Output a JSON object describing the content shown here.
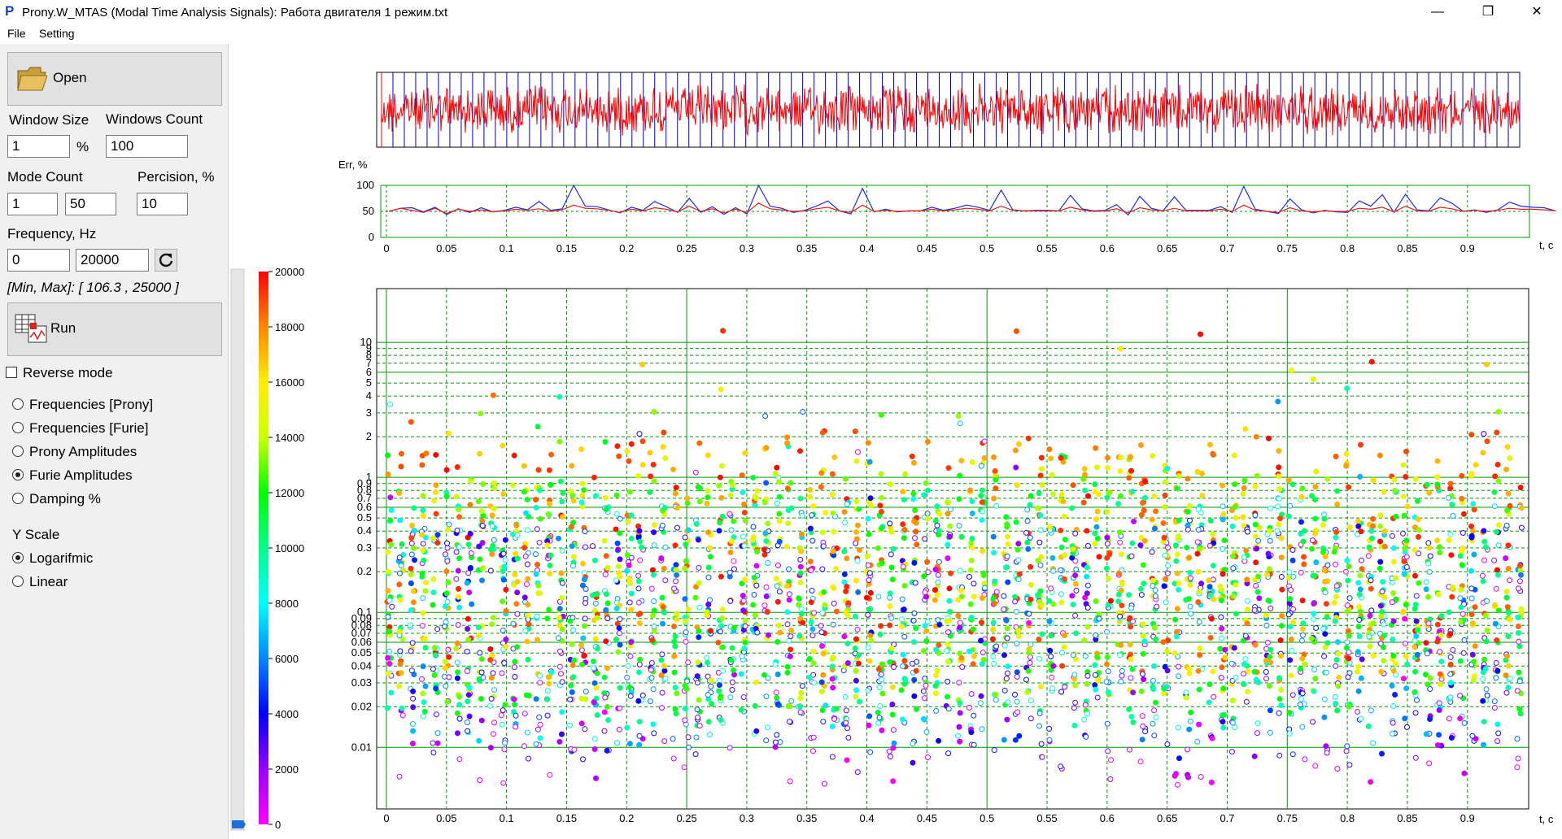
{
  "window": {
    "title": "Prony.W_MTAS (Modal Time Analysis Signals): Работа двигателя 1 режим.txt",
    "app_icon": "P",
    "minimize_glyph": "—",
    "maximize_glyph": "❐",
    "close_glyph": "✕"
  },
  "menu": [
    {
      "label": "File"
    },
    {
      "label": "Setting"
    }
  ],
  "panel": {
    "open_label": "Open",
    "window_size_label": "Window Size",
    "window_size_value": "1",
    "window_size_unit": "%",
    "windows_count_label": "Windows Count",
    "windows_count_value": "100",
    "mode_count_label": "Mode Count",
    "mode_count_min": "1",
    "mode_count_max": "50",
    "percision_label": "Percision, %",
    "percision_value": "10",
    "frequency_label": "Frequency, Hz",
    "frequency_min": "0",
    "frequency_max": "20000",
    "minmax_text": "[Min, Max]: [ 106.3 , 25000 ]",
    "run_label": "Run",
    "reverse_label": "Reverse mode",
    "reverse_checked": false,
    "display_options": [
      {
        "label": "Frequencies [Prony]",
        "selected": false
      },
      {
        "label": "Frequencies [Furie]",
        "selected": false
      },
      {
        "label": "Prony Amplitudes",
        "selected": false
      },
      {
        "label": "Furie Amplitudes",
        "selected": true
      },
      {
        "label": "Damping %",
        "selected": false
      }
    ],
    "yscale_label": "Y Scale",
    "yscale_options": [
      {
        "label": "Logarifmic",
        "selected": true
      },
      {
        "label": "Linear",
        "selected": false
      }
    ]
  },
  "colors": {
    "signal": "#ff0000",
    "window_lines": "#0000cc",
    "err_blue": "#1f2fe0",
    "err_red": "#e02020",
    "grid": "#009900",
    "axis": "#000000"
  },
  "colorbar": {
    "ticks": [
      "20000",
      "18000",
      "16000",
      "14000",
      "12000",
      "10000",
      "8000",
      "6000",
      "4000",
      "2000",
      "0"
    ]
  },
  "chart_data": [
    {
      "type": "line",
      "title": "",
      "description_series": "raw signal with 100 analysis windows",
      "x": [
        0,
        0.95
      ],
      "windows_count": 100
    },
    {
      "type": "line",
      "ylabel": "Err, %",
      "xlabel": "t, c",
      "ylim": [
        0,
        100
      ],
      "xlim": [
        0,
        0.95
      ],
      "y_ticks": [
        "100",
        "50",
        "0"
      ],
      "x_ticks": [
        "0",
        "0.05",
        "0.1",
        "0.15",
        "0.2",
        "0.25",
        "0.3",
        "0.35",
        "0.4",
        "0.45",
        "0.5",
        "0.55",
        "0.6",
        "0.65",
        "0.7",
        "0.75",
        "0.8",
        "0.85",
        "0.9"
      ],
      "series": [
        {
          "values": [
            50,
            56,
            57,
            49,
            58,
            44,
            55,
            48,
            57,
            49,
            52,
            58,
            53,
            69,
            52,
            55,
            100,
            60,
            59,
            53,
            47,
            58,
            52,
            69,
            59,
            48,
            75,
            48,
            59,
            44,
            57,
            45,
            100,
            60,
            56,
            48,
            52,
            60,
            70,
            51,
            45,
            94,
            49,
            54,
            49,
            51,
            51,
            58,
            52,
            56,
            62,
            58,
            52,
            91,
            53,
            51,
            52,
            52,
            51,
            81,
            55,
            51,
            52,
            63,
            43,
            79,
            56,
            51,
            78,
            52,
            52,
            52,
            59,
            48,
            98,
            54,
            50,
            46,
            74,
            53,
            47,
            52,
            49,
            48,
            70,
            60,
            82,
            48,
            83,
            53,
            51,
            76,
            66,
            50,
            53,
            48,
            53,
            68,
            60,
            58,
            57,
            51
          ]
        },
        {
          "values": [
            50,
            56,
            52,
            48,
            56,
            46,
            54,
            50,
            53,
            49,
            51,
            54,
            52,
            55,
            50,
            53,
            62,
            56,
            55,
            52,
            48,
            54,
            51,
            57,
            54,
            49,
            60,
            50,
            55,
            47,
            54,
            48,
            66,
            55,
            53,
            50,
            51,
            55,
            58,
            51,
            48,
            62,
            50,
            52,
            50,
            51,
            51,
            54,
            51,
            53,
            56,
            54,
            51,
            60,
            52,
            51,
            51,
            51,
            51,
            58,
            53,
            50,
            51,
            55,
            47,
            57,
            53,
            51,
            56,
            51,
            51,
            51,
            54,
            50,
            62,
            52,
            50,
            48,
            57,
            51,
            49,
            51,
            50,
            50,
            56,
            54,
            58,
            49,
            60,
            51,
            50,
            58,
            55,
            50,
            52,
            50,
            52,
            56,
            54,
            54,
            53,
            51
          ]
        }
      ]
    },
    {
      "type": "scatter",
      "xlabel": "t, c",
      "ylabel": "",
      "log_y": true,
      "ylim": [
        0.0035,
        25
      ],
      "xlim": [
        -0.01,
        0.95
      ],
      "x_ticks": [
        "0",
        "0.05",
        "0.1",
        "0.15",
        "0.2",
        "0.25",
        "0.3",
        "0.35",
        "0.4",
        "0.45",
        "0.5",
        "0.55",
        "0.6",
        "0.65",
        "0.7",
        "0.75",
        "0.8",
        "0.85",
        "0.9"
      ],
      "y_ticks": [
        "10",
        "9",
        "8",
        "7",
        "6",
        "5",
        "4",
        "3",
        "2",
        "1",
        "0.9",
        "0.8",
        "0.7",
        "0.6",
        "0.5",
        "0.4",
        "0.3",
        "0.2",
        "0.1",
        "0.09",
        "0.08",
        "0.07",
        "0.06",
        "0.05",
        "0.04",
        "0.03",
        "0.02",
        "0.01"
      ],
      "color_scale": "frequency, Hz (0–20000)",
      "points_per_window": 50,
      "windows": 100
    }
  ]
}
